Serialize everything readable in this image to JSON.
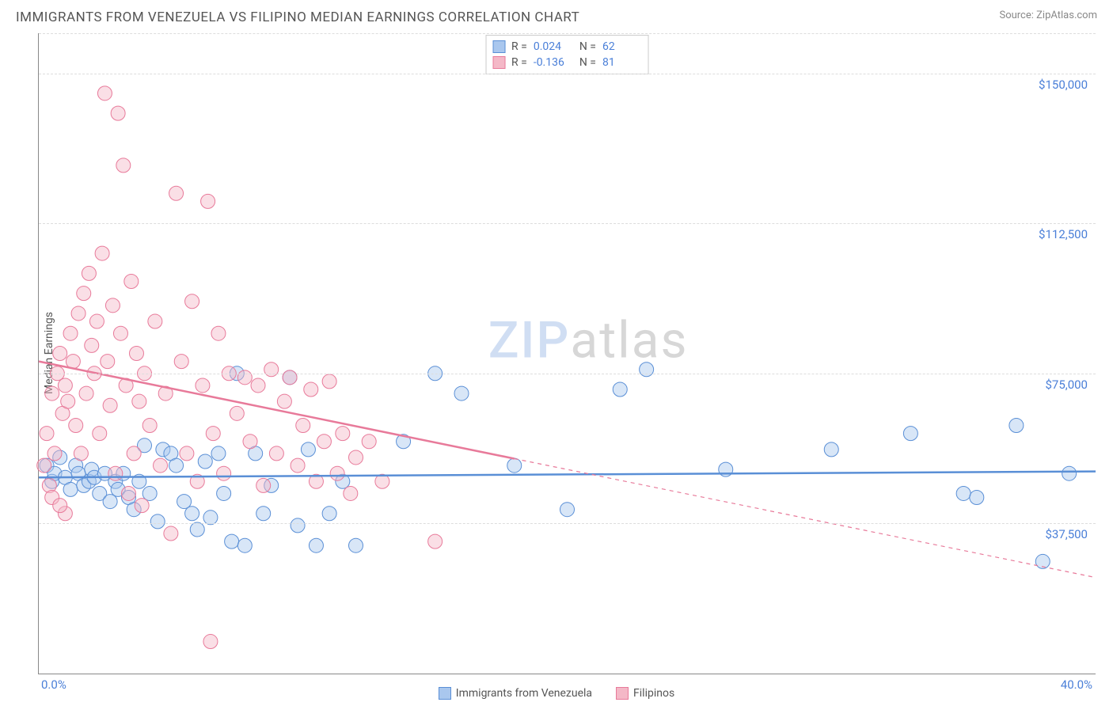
{
  "header": {
    "title": "IMMIGRANTS FROM VENEZUELA VS FILIPINO MEDIAN EARNINGS CORRELATION CHART",
    "source": "Source: ZipAtlas.com"
  },
  "watermark": {
    "zip": "ZIP",
    "atlas": "atlas"
  },
  "chart": {
    "type": "scatter",
    "ylabel": "Median Earnings",
    "xlim": [
      0,
      40
    ],
    "ylim": [
      0,
      160000
    ],
    "background_color": "#ffffff",
    "grid_color": "#dddddd",
    "axis_color": "#888888",
    "tick_color": "#4a7fd8",
    "gridlines_y": [
      37500,
      75000,
      112500,
      150000
    ],
    "ytick_labels": [
      "$37,500",
      "$75,000",
      "$112,500",
      "$150,000"
    ],
    "xtick_labels": {
      "left": "0.0%",
      "right": "40.0%"
    },
    "marker_radius": 9,
    "marker_opacity": 0.45,
    "line_width": 2.5,
    "series": [
      {
        "name": "Immigrants from Venezuela",
        "fill": "#a9c7ee",
        "stroke": "#5a8fd6",
        "r": "0.024",
        "n": "62",
        "trend": {
          "x1": 0,
          "y1": 49000,
          "x2": 40,
          "y2": 50500,
          "solid_until_x": 40
        },
        "points": [
          [
            0.3,
            52000
          ],
          [
            0.5,
            48000
          ],
          [
            0.6,
            50000
          ],
          [
            0.8,
            54000
          ],
          [
            1.0,
            49000
          ],
          [
            1.2,
            46000
          ],
          [
            1.4,
            52000
          ],
          [
            1.5,
            50000
          ],
          [
            1.7,
            47000
          ],
          [
            1.9,
            48000
          ],
          [
            2.0,
            51000
          ],
          [
            2.1,
            49000
          ],
          [
            2.3,
            45000
          ],
          [
            2.5,
            50000
          ],
          [
            2.7,
            43000
          ],
          [
            2.9,
            48000
          ],
          [
            3.0,
            46000
          ],
          [
            3.2,
            50000
          ],
          [
            3.4,
            44000
          ],
          [
            3.6,
            41000
          ],
          [
            3.8,
            48000
          ],
          [
            4.0,
            57000
          ],
          [
            4.2,
            45000
          ],
          [
            4.5,
            38000
          ],
          [
            4.7,
            56000
          ],
          [
            5.0,
            55000
          ],
          [
            5.2,
            52000
          ],
          [
            5.5,
            43000
          ],
          [
            5.8,
            40000
          ],
          [
            6.0,
            36000
          ],
          [
            6.3,
            53000
          ],
          [
            6.5,
            39000
          ],
          [
            6.8,
            55000
          ],
          [
            7.0,
            45000
          ],
          [
            7.3,
            33000
          ],
          [
            7.5,
            75000
          ],
          [
            7.8,
            32000
          ],
          [
            8.2,
            55000
          ],
          [
            8.5,
            40000
          ],
          [
            8.8,
            47000
          ],
          [
            9.5,
            74000
          ],
          [
            9.8,
            37000
          ],
          [
            10.2,
            56000
          ],
          [
            10.5,
            32000
          ],
          [
            11.0,
            40000
          ],
          [
            11.5,
            48000
          ],
          [
            12.0,
            32000
          ],
          [
            13.8,
            58000
          ],
          [
            15.0,
            75000
          ],
          [
            16.0,
            70000
          ],
          [
            18.0,
            52000
          ],
          [
            20.0,
            41000
          ],
          [
            22.0,
            71000
          ],
          [
            23.0,
            76000
          ],
          [
            26.0,
            51000
          ],
          [
            30.0,
            56000
          ],
          [
            33.0,
            60000
          ],
          [
            35.0,
            45000
          ],
          [
            35.5,
            44000
          ],
          [
            37.0,
            62000
          ],
          [
            38.0,
            28000
          ],
          [
            39.0,
            50000
          ]
        ]
      },
      {
        "name": "Filipinos",
        "fill": "#f4b8c7",
        "stroke": "#e87a9a",
        "r": "-0.136",
        "n": "81",
        "trend": {
          "x1": 0,
          "y1": 78000,
          "x2": 40,
          "y2": 24000,
          "solid_until_x": 18
        },
        "points": [
          [
            0.2,
            52000
          ],
          [
            0.3,
            60000
          ],
          [
            0.4,
            47000
          ],
          [
            0.5,
            70000
          ],
          [
            0.6,
            55000
          ],
          [
            0.7,
            75000
          ],
          [
            0.8,
            80000
          ],
          [
            0.9,
            65000
          ],
          [
            1.0,
            72000
          ],
          [
            1.1,
            68000
          ],
          [
            1.2,
            85000
          ],
          [
            1.3,
            78000
          ],
          [
            1.4,
            62000
          ],
          [
            1.5,
            90000
          ],
          [
            1.6,
            55000
          ],
          [
            1.7,
            95000
          ],
          [
            1.8,
            70000
          ],
          [
            1.9,
            100000
          ],
          [
            2.0,
            82000
          ],
          [
            2.1,
            75000
          ],
          [
            2.2,
            88000
          ],
          [
            2.3,
            60000
          ],
          [
            2.4,
            105000
          ],
          [
            2.5,
            145000
          ],
          [
            2.6,
            78000
          ],
          [
            2.7,
            67000
          ],
          [
            2.8,
            92000
          ],
          [
            2.9,
            50000
          ],
          [
            3.0,
            140000
          ],
          [
            3.1,
            85000
          ],
          [
            3.2,
            127000
          ],
          [
            3.3,
            72000
          ],
          [
            3.4,
            45000
          ],
          [
            3.5,
            98000
          ],
          [
            3.6,
            55000
          ],
          [
            3.7,
            80000
          ],
          [
            3.8,
            68000
          ],
          [
            3.9,
            42000
          ],
          [
            4.0,
            75000
          ],
          [
            4.2,
            62000
          ],
          [
            4.4,
            88000
          ],
          [
            4.6,
            52000
          ],
          [
            4.8,
            70000
          ],
          [
            5.0,
            35000
          ],
          [
            5.2,
            120000
          ],
          [
            5.4,
            78000
          ],
          [
            5.6,
            55000
          ],
          [
            5.8,
            93000
          ],
          [
            6.0,
            48000
          ],
          [
            6.2,
            72000
          ],
          [
            6.4,
            118000
          ],
          [
            6.6,
            60000
          ],
          [
            6.8,
            85000
          ],
          [
            7.0,
            50000
          ],
          [
            7.2,
            75000
          ],
          [
            7.5,
            65000
          ],
          [
            7.8,
            74000
          ],
          [
            8.0,
            58000
          ],
          [
            8.3,
            72000
          ],
          [
            8.5,
            47000
          ],
          [
            8.8,
            76000
          ],
          [
            9.0,
            55000
          ],
          [
            9.3,
            68000
          ],
          [
            9.5,
            74000
          ],
          [
            9.8,
            52000
          ],
          [
            10.0,
            62000
          ],
          [
            10.3,
            71000
          ],
          [
            10.5,
            48000
          ],
          [
            10.8,
            58000
          ],
          [
            11.0,
            73000
          ],
          [
            11.3,
            50000
          ],
          [
            11.5,
            60000
          ],
          [
            11.8,
            45000
          ],
          [
            12.0,
            54000
          ],
          [
            12.5,
            58000
          ],
          [
            13.0,
            48000
          ],
          [
            15.0,
            33000
          ],
          [
            6.5,
            8000
          ],
          [
            0.5,
            44000
          ],
          [
            1.0,
            40000
          ],
          [
            0.8,
            42000
          ]
        ]
      }
    ]
  },
  "bottom_legend": [
    {
      "label": "Immigrants from Venezuela",
      "fill": "#a9c7ee",
      "stroke": "#5a8fd6"
    },
    {
      "label": "Filipinos",
      "fill": "#f4b8c7",
      "stroke": "#e87a9a"
    }
  ]
}
